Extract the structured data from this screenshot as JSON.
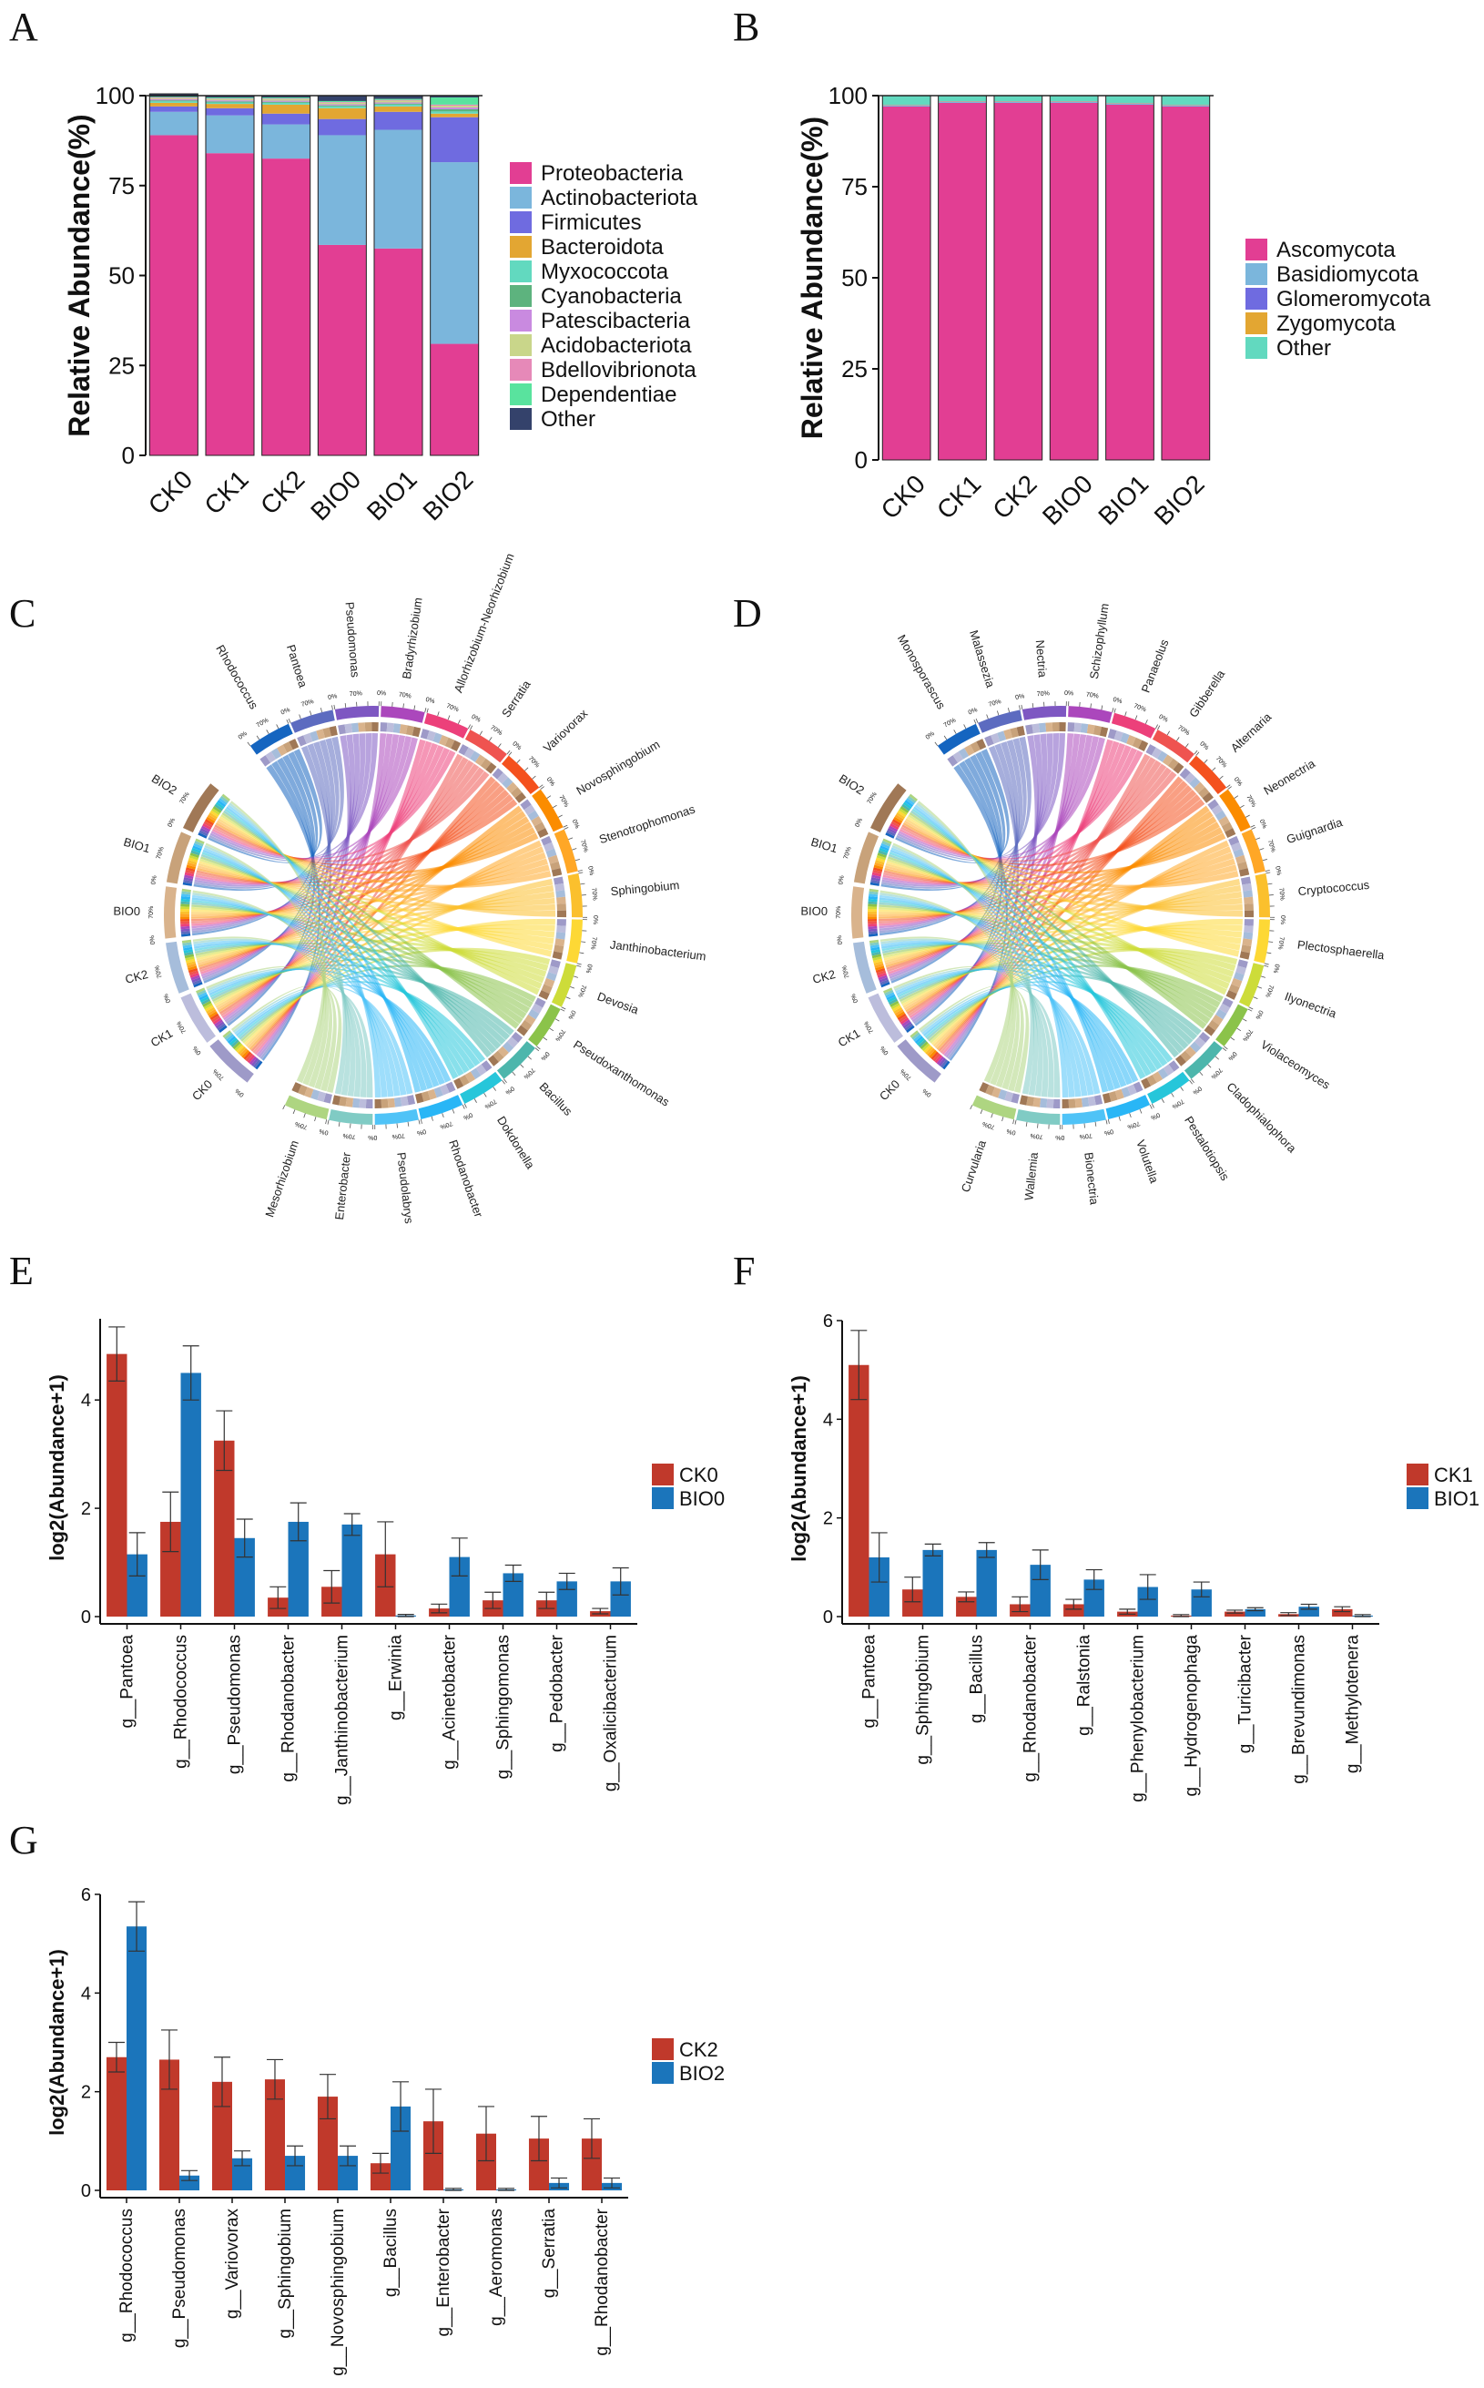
{
  "panel_letters": {
    "a": "A",
    "b": "B",
    "c": "C",
    "d": "D",
    "e": "E",
    "f": "F",
    "g": "G"
  },
  "chart_data": [
    {
      "id": "A",
      "type": "bar",
      "stacked": true,
      "ylabel": "Relative Abundance(%)",
      "ylim": [
        0,
        100
      ],
      "yticks": [
        "0",
        "25",
        "50",
        "75",
        "100"
      ],
      "categories": [
        "CK0",
        "CK1",
        "CK2",
        "BIO0",
        "BIO1",
        "BIO2"
      ],
      "series": [
        {
          "name": "Proteobacteria",
          "color": "#e23e93",
          "values": [
            89,
            84,
            82.5,
            58.5,
            57.5,
            31
          ]
        },
        {
          "name": "Actinobacteriota",
          "color": "#7bb6dc",
          "values": [
            6.5,
            10.5,
            9.5,
            30.5,
            33,
            50.5
          ]
        },
        {
          "name": "Firmicutes",
          "color": "#6f6be0",
          "values": [
            1.5,
            2,
            3,
            4.5,
            5,
            12.5
          ]
        },
        {
          "name": "Bacteroidota",
          "color": "#e3a632",
          "values": [
            1,
            1.2,
            2.5,
            3,
            1.5,
            1
          ]
        },
        {
          "name": "Myxococcota",
          "color": "#62d9bf",
          "values": [
            0.4,
            0.4,
            0.5,
            0.5,
            0.5,
            0.6
          ]
        },
        {
          "name": "Cyanobacteria",
          "color": "#5db37e",
          "values": [
            0.3,
            0.3,
            0.3,
            0.3,
            0.3,
            0.6
          ]
        },
        {
          "name": "Patescibacteria",
          "color": "#c98ae0",
          "values": [
            0.3,
            0.3,
            0.3,
            0.3,
            0.3,
            0.5
          ]
        },
        {
          "name": "Acidobacteriota",
          "color": "#c9d68a",
          "values": [
            0.3,
            0.3,
            0.4,
            0.4,
            0.5,
            0.5
          ]
        },
        {
          "name": "Bdellovibrionota",
          "color": "#e689b8",
          "values": [
            0.2,
            0.2,
            0.2,
            0.2,
            0.2,
            0.3
          ]
        },
        {
          "name": "Dependentiae",
          "color": "#59e39e",
          "values": [
            0.2,
            0.3,
            0.3,
            0.3,
            0.3,
            2
          ]
        },
        {
          "name": "Other",
          "color": "#34426b",
          "values": [
            0.8,
            0.5,
            0.5,
            1.5,
            0.9,
            0.5
          ]
        }
      ]
    },
    {
      "id": "B",
      "type": "bar",
      "stacked": true,
      "ylabel": "Relative Abundance(%)",
      "ylim": [
        0,
        100
      ],
      "yticks": [
        "0",
        "25",
        "50",
        "75",
        "100"
      ],
      "categories": [
        "CK0",
        "CK1",
        "CK2",
        "BIO0",
        "BIO1",
        "BIO2"
      ],
      "series": [
        {
          "name": "Ascomycota",
          "color": "#e23e93",
          "values": [
            97,
            98,
            98,
            98,
            97.5,
            97
          ]
        },
        {
          "name": "Basidiomycota",
          "color": "#7bb6dc",
          "values": [
            0.3,
            0.3,
            0.3,
            0.3,
            0.3,
            0.3
          ]
        },
        {
          "name": "Glomeromycota",
          "color": "#6f6be0",
          "values": [
            0.1,
            0.1,
            0.1,
            0.1,
            0.1,
            0.1
          ]
        },
        {
          "name": "Zygomycota",
          "color": "#e3a632",
          "values": [
            0.1,
            0.1,
            0.1,
            0.1,
            0.1,
            0.1
          ]
        },
        {
          "name": "Other",
          "color": "#62d9bf",
          "values": [
            2.5,
            1.5,
            1.5,
            1.5,
            2,
            2.5
          ]
        }
      ]
    },
    {
      "id": "C",
      "type": "chord",
      "samples": [
        "CK0",
        "CK1",
        "CK2",
        "BIO0",
        "BIO1",
        "BIO2"
      ],
      "taxa": [
        "Rhodococcus",
        "Pantoea",
        "Pseudomonas",
        "Bradyrhizobium",
        "Allorhizobium-Neorhizobium",
        "Serratia",
        "Variovorax",
        "Novosphingobium",
        "Stenotrophomonas",
        "Sphingobium",
        "Janthinobacterium",
        "Devosia",
        "Pseudoxanthomonas",
        "Bacillus",
        "Dokdonella",
        "Rhodanobacter",
        "Pseudolabrys",
        "Enterobacter",
        "Mesorhizobium"
      ],
      "ring_tick_labels": [
        "0%",
        "70%"
      ]
    },
    {
      "id": "D",
      "type": "chord",
      "samples": [
        "CK0",
        "CK1",
        "CK2",
        "BIO0",
        "BIO1",
        "BIO2"
      ],
      "taxa": [
        "Monosporascus",
        "Malassezia",
        "Nectria",
        "Schizophyllum",
        "Panaeolus",
        "Gibberella",
        "Alternaria",
        "Neonectria",
        "Guignardia",
        "Cryptococcus",
        "Plectosphaerella",
        "Ilyonectria",
        "Violaceomyces",
        "Cladophialophora",
        "Pestalotiopsis",
        "Volutella",
        "Bionectria",
        "Wallemia",
        "Curvularia"
      ],
      "ring_tick_labels": [
        "0%",
        "70%"
      ]
    },
    {
      "id": "E",
      "type": "bar",
      "ylabel": "log2(Abundance+1)",
      "ylim": [
        0,
        5.5
      ],
      "yticks": [
        "0",
        "2",
        "4"
      ],
      "categories": [
        "g__Pantoea",
        "g__Rhodococcus",
        "g__Pseudomonas",
        "g__Rhodanobacter",
        "g__Janthinobacterium",
        "g__Erwinia",
        "g__Acinetobacter",
        "g__Sphingomonas",
        "g__Pedobacter",
        "g__Oxalicibacterium"
      ],
      "series": [
        {
          "name": "CK0",
          "color": "#c0392b",
          "values": [
            4.85,
            1.75,
            3.25,
            0.35,
            0.55,
            1.15,
            0.15,
            0.3,
            0.3,
            0.1
          ],
          "errors": [
            0.5,
            0.55,
            0.55,
            0.2,
            0.3,
            0.6,
            0.08,
            0.15,
            0.15,
            0.05
          ]
        },
        {
          "name": "BIO0",
          "color": "#1b75bb",
          "values": [
            1.15,
            4.5,
            1.45,
            1.75,
            1.7,
            0.02,
            1.1,
            0.8,
            0.65,
            0.65
          ],
          "errors": [
            0.4,
            0.5,
            0.35,
            0.35,
            0.2,
            0.02,
            0.35,
            0.15,
            0.15,
            0.25
          ]
        }
      ]
    },
    {
      "id": "F",
      "type": "bar",
      "ylabel": "log2(Abundance+1)",
      "ylim": [
        0,
        6
      ],
      "yticks": [
        "0",
        "2",
        "4",
        "6"
      ],
      "categories": [
        "g__Pantoea",
        "g__Sphingobium",
        "g__Bacillus",
        "g__Rhodanobacter",
        "g__Ralstonia",
        "g__Phenylobacterium",
        "g__Hydrogenophaga",
        "g__Turicibacter",
        "g__Brevundimonas",
        "g__Methylotenera"
      ],
      "series": [
        {
          "name": "CK1",
          "color": "#c0392b",
          "values": [
            5.1,
            0.55,
            0.4,
            0.25,
            0.25,
            0.1,
            0.02,
            0.1,
            0.05,
            0.15
          ],
          "errors": [
            0.7,
            0.25,
            0.1,
            0.15,
            0.1,
            0.05,
            0.02,
            0.03,
            0.03,
            0.05
          ]
        },
        {
          "name": "BIO1",
          "color": "#1b75bb",
          "values": [
            1.2,
            1.35,
            1.35,
            1.05,
            0.75,
            0.6,
            0.55,
            0.15,
            0.2,
            0.02
          ],
          "errors": [
            0.5,
            0.12,
            0.15,
            0.3,
            0.2,
            0.25,
            0.15,
            0.03,
            0.05,
            0.02
          ]
        }
      ]
    },
    {
      "id": "G",
      "type": "bar",
      "ylabel": "log2(Abundance+1)",
      "ylim": [
        0,
        6
      ],
      "yticks": [
        "0",
        "2",
        "4",
        "6"
      ],
      "categories": [
        "g__Rhodococcus",
        "g__Pseudomonas",
        "g__Variovorax",
        "g__Sphingobium",
        "g__Novosphingobium",
        "g__Bacillus",
        "g__Enterobacter",
        "g__Aeromonas",
        "g__Serratia",
        "g__Rhodanobacter"
      ],
      "series": [
        {
          "name": "CK2",
          "color": "#c0392b",
          "values": [
            2.7,
            2.65,
            2.2,
            2.25,
            1.9,
            0.55,
            1.4,
            1.15,
            1.05,
            1.05
          ],
          "errors": [
            0.3,
            0.6,
            0.5,
            0.4,
            0.45,
            0.2,
            0.65,
            0.55,
            0.45,
            0.4
          ]
        },
        {
          "name": "BIO2",
          "color": "#1b75bb",
          "values": [
            5.35,
            0.3,
            0.65,
            0.7,
            0.7,
            1.7,
            0.02,
            0.02,
            0.15,
            0.15
          ],
          "errors": [
            0.5,
            0.1,
            0.15,
            0.2,
            0.2,
            0.5,
            0.02,
            0.02,
            0.1,
            0.1
          ]
        }
      ]
    }
  ]
}
